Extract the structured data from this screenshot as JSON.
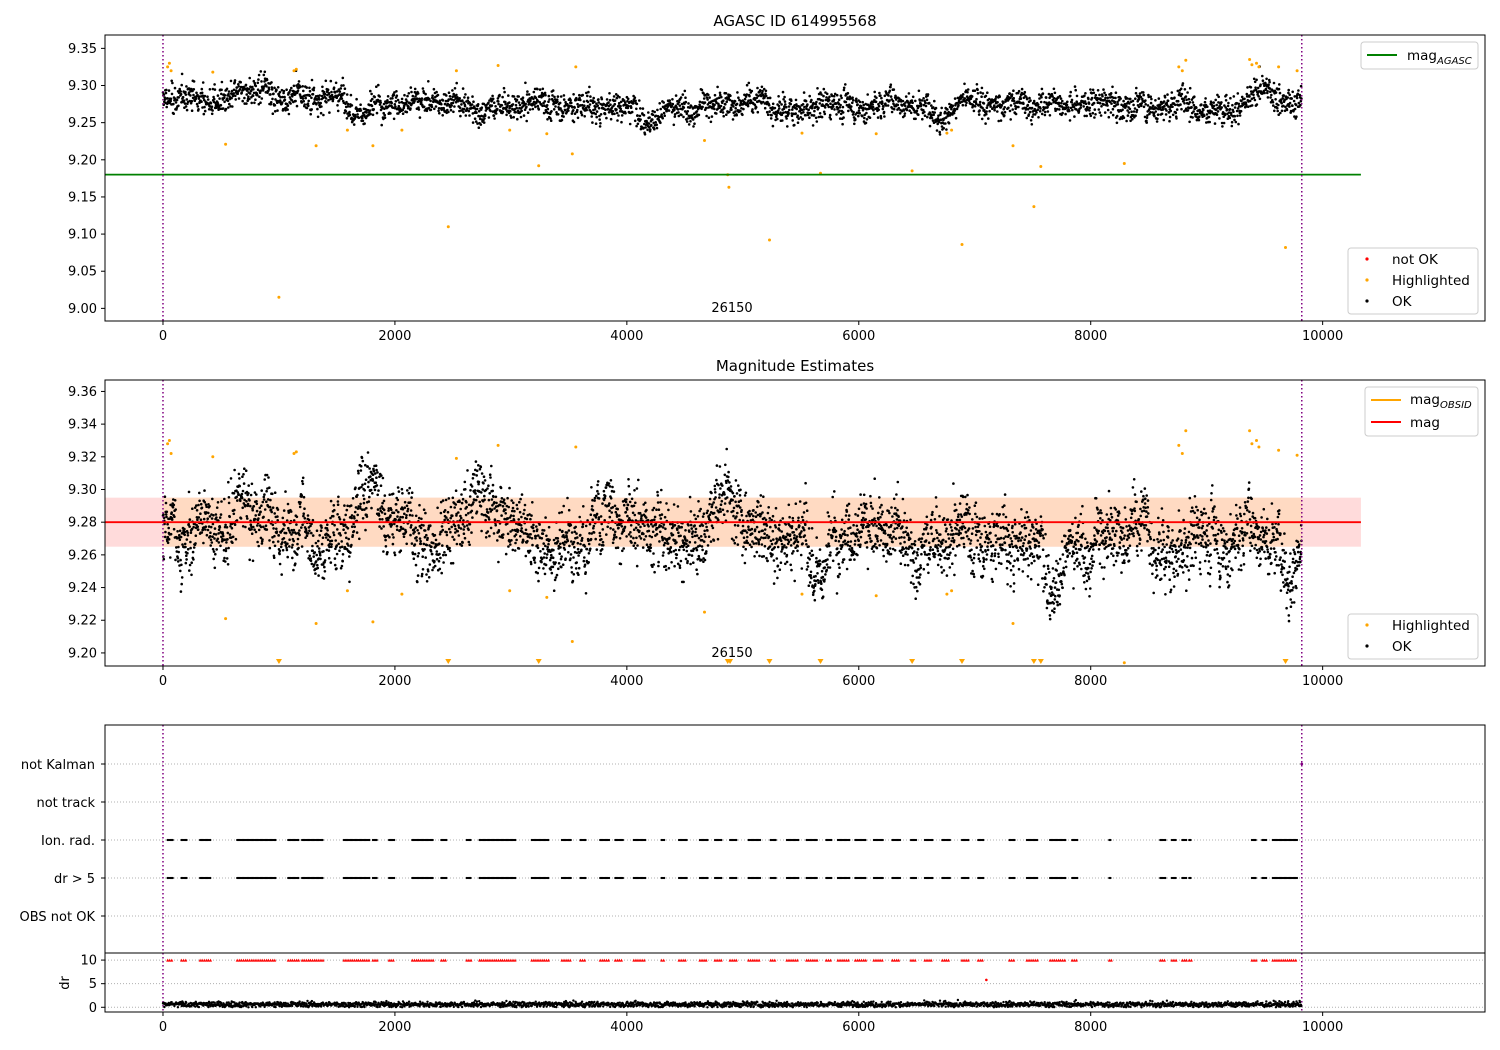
{
  "colors": {
    "ok": "#000000",
    "highlighted": "#ffa500",
    "not_ok": "#ff0000",
    "agasc_line": "#008000",
    "mag_line": "#ff0000",
    "band": "#ffd0c8",
    "obs_line": "#800080"
  },
  "chart_data": [
    {
      "type": "scatter",
      "title": "AGASC ID 614995568",
      "xlim": [
        -500,
        11400
      ],
      "ylim": [
        8.983,
        9.368
      ],
      "xticks": [
        "0",
        "2000",
        "4000",
        "6000",
        "8000",
        "10000"
      ],
      "xtick_values": [
        0,
        2000,
        4000,
        6000,
        8000,
        10000
      ],
      "yticks": [
        "9.00",
        "9.05",
        "9.10",
        "9.15",
        "9.20",
        "9.25",
        "9.30",
        "9.35"
      ],
      "ytick_values": [
        9.0,
        9.05,
        9.1,
        9.15,
        9.2,
        9.25,
        9.3,
        9.35
      ],
      "mag_agasc": 9.18,
      "obs_boundaries": [
        0,
        9820
      ],
      "obsid_label": "26150",
      "ok_band": {
        "x_range": [
          0,
          9820
        ],
        "center": 9.28,
        "spread": 0.02
      },
      "highlighted": [
        [
          40,
          9.325
        ],
        [
          55,
          9.33
        ],
        [
          70,
          9.32
        ],
        [
          430,
          9.318
        ],
        [
          540,
          9.221
        ],
        [
          1000,
          9.015
        ],
        [
          1130,
          9.32
        ],
        [
          1150,
          9.322
        ],
        [
          1320,
          9.219
        ],
        [
          1590,
          9.24
        ],
        [
          1810,
          9.219
        ],
        [
          2060,
          9.24
        ],
        [
          2460,
          9.11
        ],
        [
          2530,
          9.32
        ],
        [
          2890,
          9.327
        ],
        [
          2990,
          9.24
        ],
        [
          3240,
          9.192
        ],
        [
          3310,
          9.235
        ],
        [
          3530,
          9.208
        ],
        [
          3560,
          9.325
        ],
        [
          4670,
          9.226
        ],
        [
          4870,
          9.18
        ],
        [
          4880,
          9.163
        ],
        [
          5230,
          9.092
        ],
        [
          5510,
          9.236
        ],
        [
          5670,
          9.182
        ],
        [
          6150,
          9.235
        ],
        [
          6460,
          9.185
        ],
        [
          6760,
          9.236
        ],
        [
          6800,
          9.24
        ],
        [
          6890,
          9.086
        ],
        [
          7330,
          9.219
        ],
        [
          7510,
          9.137
        ],
        [
          7570,
          9.191
        ],
        [
          8290,
          9.195
        ],
        [
          8760,
          9.325
        ],
        [
          8790,
          9.32
        ],
        [
          8820,
          9.334
        ],
        [
          9370,
          9.335
        ],
        [
          9390,
          9.328
        ],
        [
          9430,
          9.33
        ],
        [
          9450,
          9.325
        ],
        [
          9620,
          9.325
        ],
        [
          9680,
          9.082
        ],
        [
          9780,
          9.32
        ]
      ],
      "legend_lines": [
        {
          "label": "mag",
          "sub": "AGASC",
          "color": "#008000"
        }
      ],
      "legend_points": [
        {
          "label": "not OK",
          "color": "#ff0000"
        },
        {
          "label": "Highlighted",
          "color": "#ffa500"
        },
        {
          "label": "OK",
          "color": "#000000"
        }
      ]
    },
    {
      "type": "scatter",
      "title": "Magnitude Estimates",
      "xlim": [
        -500,
        11400
      ],
      "ylim": [
        9.192,
        9.367
      ],
      "xticks": [
        "0",
        "2000",
        "4000",
        "6000",
        "8000",
        "10000"
      ],
      "xtick_values": [
        0,
        2000,
        4000,
        6000,
        8000,
        10000
      ],
      "yticks": [
        "9.20",
        "9.22",
        "9.24",
        "9.26",
        "9.28",
        "9.30",
        "9.32",
        "9.34",
        "9.36"
      ],
      "ytick_values": [
        9.2,
        9.22,
        9.24,
        9.26,
        9.28,
        9.3,
        9.32,
        9.34,
        9.36
      ],
      "mag": 9.28,
      "mag_band": [
        9.265,
        9.295
      ],
      "mag_obsid_band": [
        9.265,
        9.295
      ],
      "obs_boundaries": [
        0,
        9820
      ],
      "obsid_label": "26150",
      "ok_band": {
        "x_range": [
          0,
          9820
        ],
        "center": 9.279,
        "spread": 0.022
      },
      "highlighted": [
        [
          40,
          9.328
        ],
        [
          55,
          9.33
        ],
        [
          70,
          9.322
        ],
        [
          430,
          9.32
        ],
        [
          540,
          9.221
        ],
        [
          1130,
          9.322
        ],
        [
          1150,
          9.323
        ],
        [
          1320,
          9.218
        ],
        [
          1590,
          9.238
        ],
        [
          1810,
          9.219
        ],
        [
          2060,
          9.236
        ],
        [
          2530,
          9.319
        ],
        [
          2890,
          9.327
        ],
        [
          2990,
          9.238
        ],
        [
          3310,
          9.234
        ],
        [
          3530,
          9.207
        ],
        [
          3560,
          9.326
        ],
        [
          4670,
          9.225
        ],
        [
          5510,
          9.236
        ],
        [
          6150,
          9.235
        ],
        [
          6760,
          9.236
        ],
        [
          6800,
          9.238
        ],
        [
          7330,
          9.218
        ],
        [
          8290,
          9.194
        ],
        [
          8760,
          9.327
        ],
        [
          8790,
          9.322
        ],
        [
          8820,
          9.336
        ],
        [
          9370,
          9.336
        ],
        [
          9390,
          9.328
        ],
        [
          9430,
          9.33
        ],
        [
          9450,
          9.326
        ],
        [
          9620,
          9.324
        ],
        [
          9780,
          9.321
        ]
      ],
      "below_range_markers": [
        1000,
        2460,
        3240,
        4870,
        4890,
        5230,
        5670,
        6460,
        6890,
        7510,
        7570,
        9680
      ],
      "legend_lines": [
        {
          "label": "mag",
          "sub": "OBSID",
          "color": "#ffa500"
        },
        {
          "label": "mag",
          "sub": "",
          "color": "#ff0000"
        }
      ],
      "legend_points": [
        {
          "label": "Highlighted",
          "color": "#ffa500"
        },
        {
          "label": "OK",
          "color": "#000000"
        }
      ]
    },
    {
      "type": "scatter",
      "title": "",
      "xlim": [
        -500,
        11400
      ],
      "categories": [
        "not Kalman",
        "not track",
        "Ion. rad.",
        "dr > 5",
        "OBS not OK"
      ],
      "flag_runs": [
        [
          40,
          90
        ],
        [
          160,
          210
        ],
        [
          320,
          410
        ],
        [
          640,
          980
        ],
        [
          1080,
          1170
        ],
        [
          1200,
          1380
        ],
        [
          1560,
          1780
        ],
        [
          1810,
          1850
        ],
        [
          1950,
          2000
        ],
        [
          2150,
          2330
        ],
        [
          2400,
          2450
        ],
        [
          2620,
          2660
        ],
        [
          2730,
          3040
        ],
        [
          3180,
          3330
        ],
        [
          3440,
          3520
        ],
        [
          3600,
          3650
        ],
        [
          3770,
          3850
        ],
        [
          3900,
          3970
        ],
        [
          4060,
          4160
        ],
        [
          4300,
          4330
        ],
        [
          4450,
          4520
        ],
        [
          4630,
          4700
        ],
        [
          4760,
          4820
        ],
        [
          4890,
          4950
        ],
        [
          5050,
          5150
        ],
        [
          5240,
          5290
        ],
        [
          5380,
          5480
        ],
        [
          5550,
          5640
        ],
        [
          5720,
          5770
        ],
        [
          5820,
          5920
        ],
        [
          5970,
          6060
        ],
        [
          6130,
          6210
        ],
        [
          6290,
          6360
        ],
        [
          6450,
          6500
        ],
        [
          6570,
          6640
        ],
        [
          6720,
          6790
        ],
        [
          6890,
          6950
        ],
        [
          7030,
          7080
        ],
        [
          7300,
          7350
        ],
        [
          7450,
          7540
        ],
        [
          7650,
          7790
        ],
        [
          7840,
          7890
        ],
        [
          8160,
          8180
        ],
        [
          8600,
          8650
        ],
        [
          8700,
          8740
        ],
        [
          8790,
          8830
        ],
        [
          8850,
          8870
        ],
        [
          9390,
          9430
        ],
        [
          9480,
          9520
        ],
        [
          9570,
          9780
        ]
      ],
      "not_kalman_points": [
        9820
      ],
      "dr": {
        "ylim": [
          -1,
          11.5
        ],
        "yticks": [
          "0",
          "5",
          "10"
        ],
        "ytick_values": [
          0,
          5,
          10
        ],
        "ylabel": "dr",
        "mean": 0.6,
        "spread": 0.5,
        "outliers": [
          [
            7100,
            5.8
          ]
        ]
      },
      "xticks": [
        "0",
        "2000",
        "4000",
        "6000",
        "8000",
        "10000"
      ],
      "xtick_values": [
        0,
        2000,
        4000,
        6000,
        8000,
        10000
      ]
    }
  ]
}
